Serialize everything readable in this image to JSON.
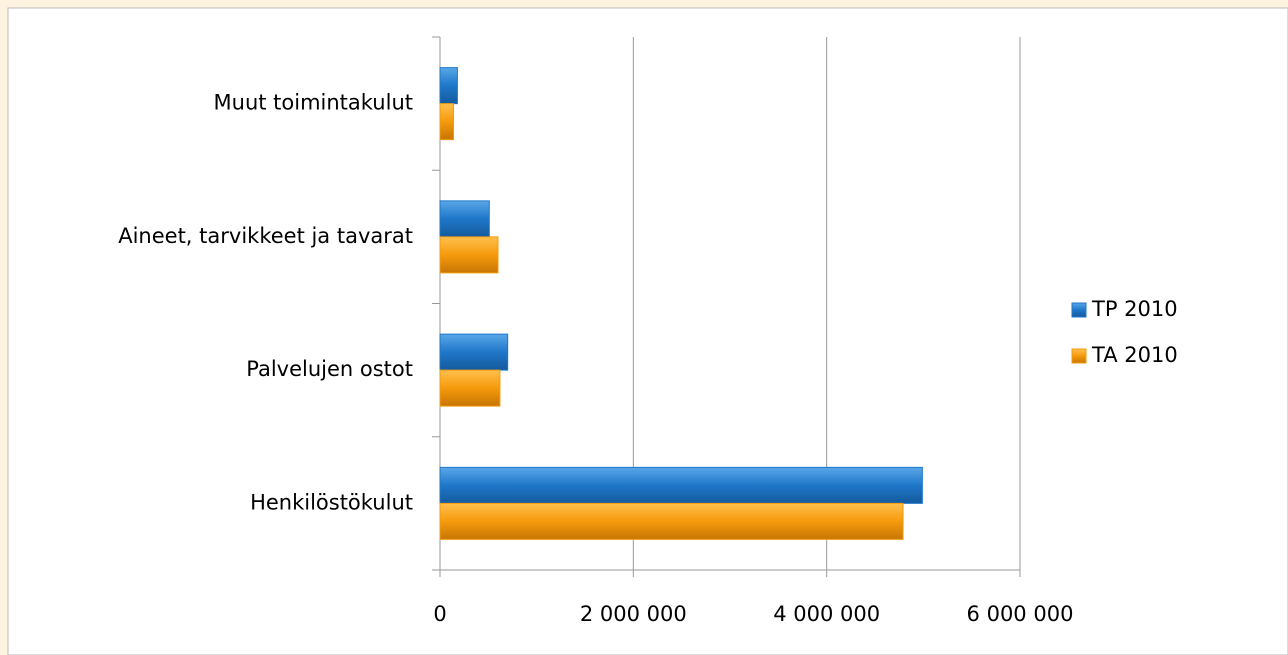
{
  "chart_data": {
    "type": "hbar",
    "categories": [
      "Henkilöstökulut",
      "Palvelujen ostot",
      "Aineet, tarvikkeet ja tavarat",
      "Muut toimintakulut"
    ],
    "series": [
      {
        "name": "TP 2010",
        "color": "#1f77c9",
        "values": [
          4990000,
          700000,
          510000,
          180000
        ]
      },
      {
        "name": "TA 2010",
        "color": "#f59a0c",
        "values": [
          4790000,
          620000,
          600000,
          140000
        ]
      }
    ],
    "xlim": [
      0,
      6000000
    ],
    "xticks": [
      0,
      {
        "value": 2000000,
        "label": "2 000 000"
      },
      {
        "value": 4000000,
        "label": "4 000 000"
      },
      {
        "value": 6000000,
        "label": "6 000 000"
      }
    ],
    "grid": true,
    "legend": "right"
  }
}
